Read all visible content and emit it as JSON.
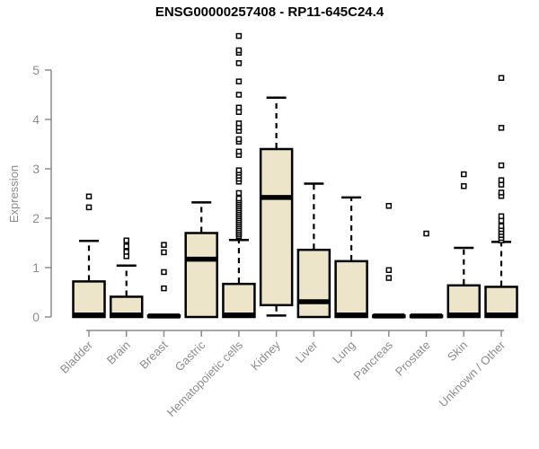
{
  "chart_data": {
    "type": "boxplot",
    "title": "ENSG00000257408 - RP11-645C24.4",
    "ylabel": "Expression",
    "xlabel": "",
    "ylim": [
      0,
      5.8
    ],
    "yticks": [
      0,
      1,
      2,
      3,
      4,
      5
    ],
    "grid": false,
    "legend": false,
    "box_fill": "#ece5ca",
    "box_stroke": "#000000",
    "axis_color": "#8c8c8c",
    "title_color": "#000000",
    "categories": [
      "Bladder",
      "Brain",
      "Breast",
      "Gastric",
      "Hematopoietic cells",
      "Kidney",
      "Liver",
      "Lung",
      "Pancreas",
      "Prostate",
      "Skin",
      "Unknown / Other"
    ],
    "boxes": [
      {
        "category": "Bladder",
        "low": 0,
        "q1": 0,
        "median": 0.04,
        "q3": 0.72,
        "high": 1.54,
        "outliers": [
          2.22,
          2.44
        ]
      },
      {
        "category": "Brain",
        "low": 0,
        "q1": 0,
        "median": 0.04,
        "q3": 0.41,
        "high": 1.04,
        "outliers": [
          1.23,
          1.32,
          1.43,
          1.55
        ]
      },
      {
        "category": "Breast",
        "low": 0,
        "q1": 0,
        "median": 0.02,
        "q3": 0.03,
        "high": 0.03,
        "outliers": [
          0.58,
          0.91,
          1.31,
          1.46
        ]
      },
      {
        "category": "Gastric",
        "low": 0,
        "q1": 0,
        "median": 1.17,
        "q3": 1.7,
        "high": 2.32,
        "outliers": []
      },
      {
        "category": "Hematopoietic cells",
        "low": 0,
        "q1": 0,
        "median": 0.04,
        "q3": 0.67,
        "high": 1.56,
        "outliers": [
          1.64,
          1.68,
          1.72,
          1.76,
          1.8,
          1.84,
          1.88,
          1.92,
          1.96,
          2.0,
          2.04,
          2.08,
          2.12,
          2.16,
          2.2,
          2.24,
          2.28,
          2.32,
          2.36,
          2.4,
          2.51,
          2.74,
          2.8,
          2.86,
          2.92,
          2.97,
          3.28,
          3.35,
          3.55,
          3.6,
          3.77,
          3.84,
          3.92,
          4.15,
          4.24,
          4.5,
          4.77,
          5.14,
          5.35,
          5.4,
          5.69
        ]
      },
      {
        "category": "Kidney",
        "low": 0.03,
        "q1": 0.24,
        "median": 2.42,
        "q3": 3.4,
        "high": 4.44,
        "outliers": []
      },
      {
        "category": "Liver",
        "low": 0,
        "q1": 0,
        "median": 0.31,
        "q3": 1.36,
        "high": 2.7,
        "outliers": []
      },
      {
        "category": "Lung",
        "low": 0,
        "q1": 0,
        "median": 0.04,
        "q3": 1.13,
        "high": 2.42,
        "outliers": []
      },
      {
        "category": "Pancreas",
        "low": 0,
        "q1": 0,
        "median": 0.02,
        "q3": 0.03,
        "high": 0.03,
        "outliers": [
          0.79,
          0.95,
          2.25
        ]
      },
      {
        "category": "Prostate",
        "low": 0,
        "q1": 0,
        "median": 0.02,
        "q3": 0.03,
        "high": 0.03,
        "outliers": [
          1.69
        ]
      },
      {
        "category": "Skin",
        "low": 0,
        "q1": 0,
        "median": 0.04,
        "q3": 0.64,
        "high": 1.4,
        "outliers": [
          2.65,
          2.89
        ]
      },
      {
        "category": "Unknown / Other",
        "low": 0,
        "q1": 0,
        "median": 0.04,
        "q3": 0.61,
        "high": 1.52,
        "outliers": [
          1.55,
          1.6,
          1.66,
          1.72,
          1.78,
          1.84,
          1.95,
          2.04,
          2.45,
          2.52,
          2.68,
          2.77,
          3.07,
          3.83,
          4.84
        ]
      }
    ]
  }
}
